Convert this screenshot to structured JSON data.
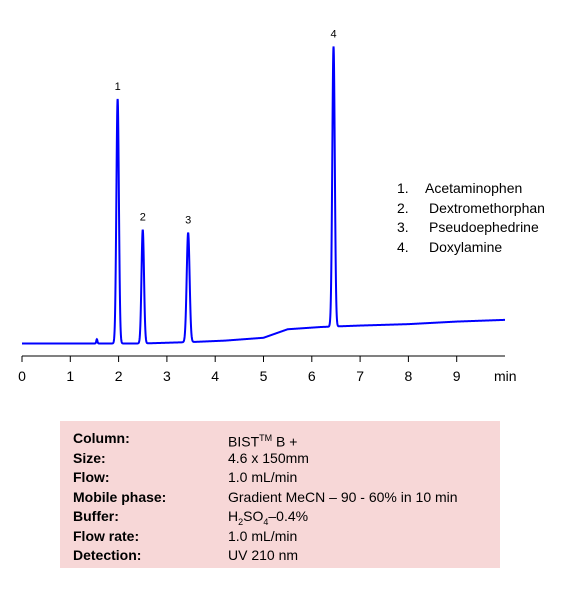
{
  "chart_data": {
    "type": "line",
    "xlabel": "min",
    "xlim": [
      0,
      10
    ],
    "x_ticks": [
      "0",
      "1",
      "2",
      "3",
      "4",
      "5",
      "6",
      "7",
      "8",
      "9"
    ],
    "baseline": [
      [
        0,
        0.0
      ],
      [
        1.5,
        0.0
      ],
      [
        2.5,
        0.0
      ],
      [
        3.5,
        0.5
      ],
      [
        4.2,
        1.0
      ],
      [
        5.0,
        2.0
      ],
      [
        5.5,
        5.0
      ],
      [
        6.2,
        5.8
      ],
      [
        7.0,
        6.3
      ],
      [
        8.0,
        6.8
      ],
      [
        9.0,
        7.7
      ],
      [
        10.0,
        8.3
      ]
    ],
    "peaks": [
      {
        "label": "1",
        "name": "Acetaminophen",
        "rt": 1.98,
        "height": 86.0,
        "width": 0.026
      },
      {
        "label": "2",
        "name": "Dextromethorphan",
        "rt": 2.5,
        "height": 40.0,
        "width": 0.026
      },
      {
        "label": "3",
        "name": "Pseudoephedrine",
        "rt": 3.44,
        "height": 38.5,
        "width": 0.03
      },
      {
        "label": "4",
        "name": "Doxylamine",
        "rt": 6.45,
        "height": 98.5,
        "width": 0.026
      }
    ],
    "minor_peaks": [
      {
        "rt": 1.55,
        "height": 1.5,
        "width": 0.012
      }
    ],
    "ylim": [
      -3,
      112
    ],
    "line_color": "#0000ff"
  },
  "legend": [
    {
      "num": "1.",
      "name": "Acetaminophen"
    },
    {
      "num": "2.",
      "name": "Dextromethorphan"
    },
    {
      "num": "3.",
      "name": "Pseudoephedrine"
    },
    {
      "num": "4.",
      "name": "Doxylamine"
    }
  ],
  "conditions": {
    "column": {
      "label": "Column:",
      "value": "BIST",
      "sup": "TM",
      "suffix": " B +"
    },
    "size": {
      "label": "Size:",
      "value": "4.6 x 150mm"
    },
    "flow": {
      "label": "Flow:",
      "value": "1.0 mL/min"
    },
    "mobile_phase": {
      "label": "Mobile phase:",
      "value": "Gradient MeCN – 90 - 60% in 10 min"
    },
    "buffer": {
      "label": "Buffer:",
      "prefix": "H",
      "sub1": "2",
      "mid": "SO",
      "sub2": "4",
      "suffix": "–0.4%"
    },
    "flow_rate": {
      "label": "Flow rate:",
      "value": "1.0 mL/min"
    },
    "detection": {
      "label": "Detection:",
      "value": "UV 210 nm"
    }
  }
}
